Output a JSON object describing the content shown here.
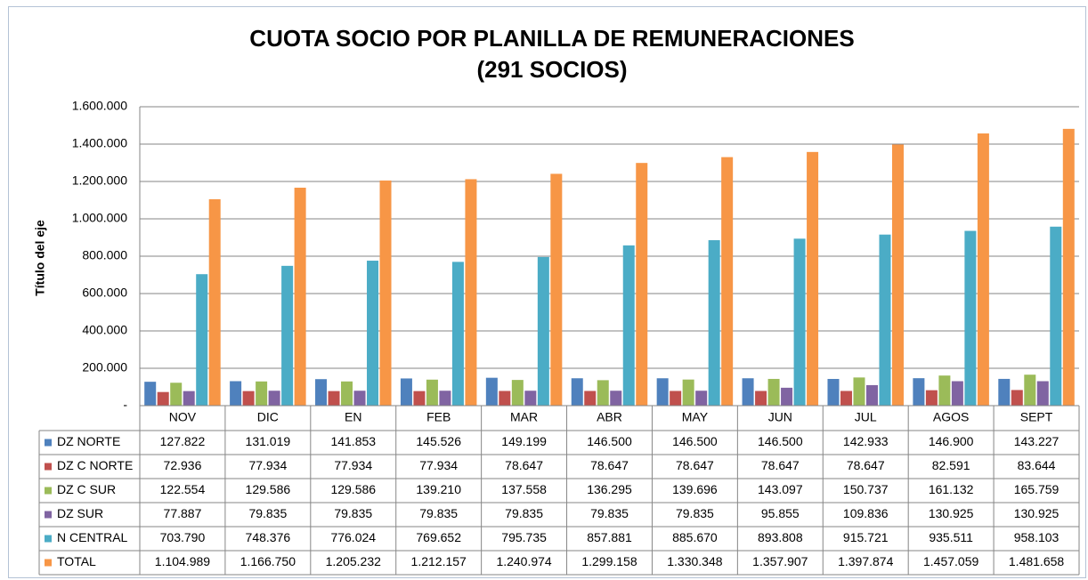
{
  "chart_data": {
    "type": "bar",
    "title": "CUOTA SOCIO POR PLANILLA DE REMUNERACIONES",
    "subtitle": "(291 SOCIOS)",
    "y_label": "Título del eje",
    "categories": [
      "NOV",
      "DIC",
      "EN",
      "FEB",
      "MAR",
      "ABR",
      "MAY",
      "JUN",
      "JUL",
      "AGOS",
      "SEPT"
    ],
    "series": [
      {
        "name": "DZ NORTE",
        "color": "#4f81bd",
        "values": [
          127822,
          131019,
          141853,
          145526,
          149199,
          146500,
          146500,
          146500,
          142933,
          146900,
          143227
        ],
        "value_labels": [
          "127.822",
          "131.019",
          "141.853",
          "145.526",
          "149.199",
          "146.500",
          "146.500",
          "146.500",
          "142.933",
          "146.900",
          "143.227"
        ]
      },
      {
        "name": "DZ C NORTE",
        "color": "#c0504d",
        "values": [
          72936,
          77934,
          77934,
          77934,
          78647,
          78647,
          78647,
          78647,
          78647,
          82591,
          83644
        ],
        "value_labels": [
          "72.936",
          "77.934",
          "77.934",
          "77.934",
          "78.647",
          "78.647",
          "78.647",
          "78.647",
          "78.647",
          "82.591",
          "83.644"
        ]
      },
      {
        "name": "DZ C SUR",
        "color": "#9bbb59",
        "values": [
          122554,
          129586,
          129586,
          139210,
          137558,
          136295,
          139696,
          143097,
          150737,
          161132,
          165759
        ],
        "value_labels": [
          "122.554",
          "129.586",
          "129.586",
          "139.210",
          "137.558",
          "136.295",
          "139.696",
          "143.097",
          "150.737",
          "161.132",
          "165.759"
        ]
      },
      {
        "name": "DZ SUR",
        "color": "#8064a2",
        "values": [
          77887,
          79835,
          79835,
          79835,
          79835,
          79835,
          79835,
          95855,
          109836,
          130925,
          130925
        ],
        "value_labels": [
          "77.887",
          "79.835",
          "79.835",
          "79.835",
          "79.835",
          "79.835",
          "79.835",
          "95.855",
          "109.836",
          "130.925",
          "130.925"
        ]
      },
      {
        "name": "N CENTRAL",
        "color": "#4bacc6",
        "values": [
          703790,
          748376,
          776024,
          769652,
          795735,
          857881,
          885670,
          893808,
          915721,
          935511,
          958103
        ],
        "value_labels": [
          "703.790",
          "748.376",
          "776.024",
          "769.652",
          "795.735",
          "857.881",
          "885.670",
          "893.808",
          "915.721",
          "935.511",
          "958.103"
        ]
      },
      {
        "name": "TOTAL",
        "color": "#f79646",
        "values": [
          1104989,
          1166750,
          1205232,
          1212157,
          1240974,
          1299158,
          1330348,
          1357907,
          1397874,
          1457059,
          1481658
        ],
        "value_labels": [
          "1.104.989",
          "1.166.750",
          "1.205.232",
          "1.212.157",
          "1.240.974",
          "1.299.158",
          "1.330.348",
          "1.357.907",
          "1.397.874",
          "1.457.059",
          "1.481.658"
        ]
      }
    ],
    "ylim": [
      0,
      1600000
    ],
    "yticks": [
      {
        "value": 0,
        "label": "-"
      },
      {
        "value": 200000,
        "label": "200.000"
      },
      {
        "value": 400000,
        "label": "400.000"
      },
      {
        "value": 600000,
        "label": "600.000"
      },
      {
        "value": 800000,
        "label": "800.000"
      },
      {
        "value": 1000000,
        "label": "1.000.000"
      },
      {
        "value": 1200000,
        "label": "1.200.000"
      },
      {
        "value": 1400000,
        "label": "1.400.000"
      },
      {
        "value": 1600000,
        "label": "1.600.000"
      }
    ],
    "grid": true
  }
}
